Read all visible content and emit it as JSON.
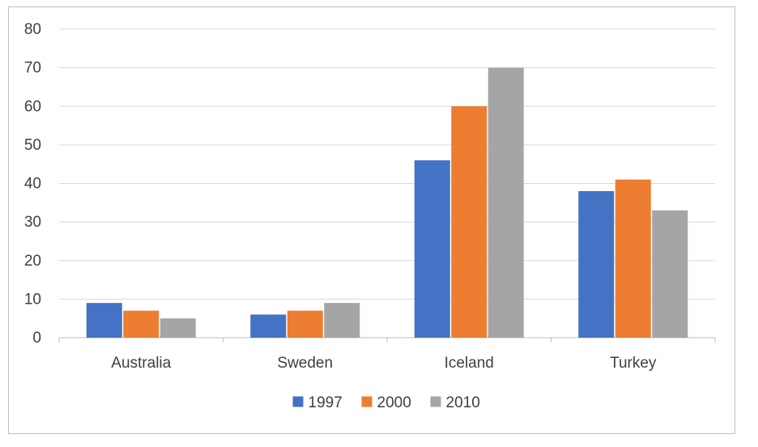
{
  "chart_data": {
    "type": "bar",
    "categories": [
      "Australia",
      "Sweden",
      "Iceland",
      "Turkey"
    ],
    "series": [
      {
        "name": "1997",
        "values": [
          9,
          6,
          46,
          38
        ],
        "color": "#4472C4"
      },
      {
        "name": "2000",
        "values": [
          7,
          7,
          60,
          41
        ],
        "color": "#ED7D31"
      },
      {
        "name": "2010",
        "values": [
          5,
          9,
          70,
          33
        ],
        "color": "#A5A5A5"
      }
    ],
    "title": "",
    "xlabel": "",
    "ylabel": "",
    "ylim": [
      0,
      80
    ],
    "yticks": [
      "0",
      "10",
      "20",
      "30",
      "40",
      "50",
      "60",
      "70",
      "80"
    ],
    "grid": true,
    "legend_position": "bottom"
  }
}
